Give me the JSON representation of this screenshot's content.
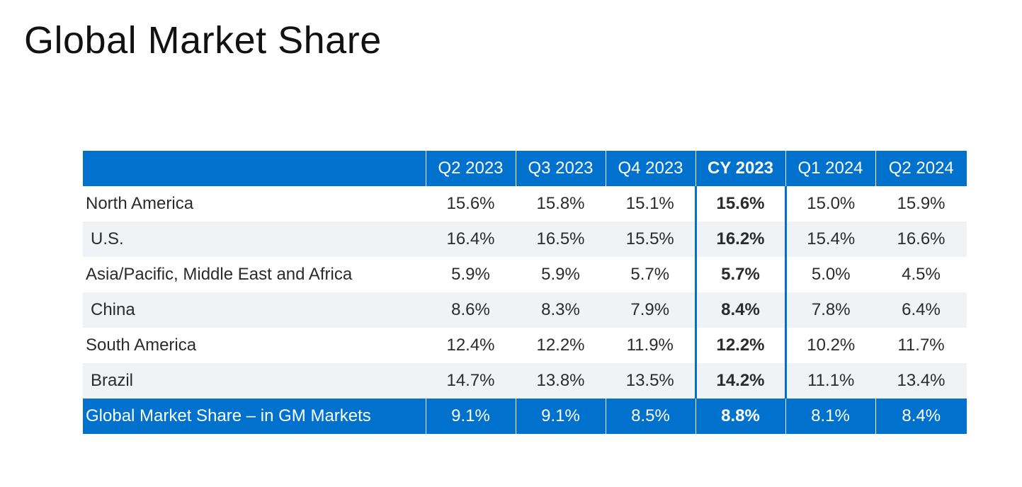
{
  "title": "Global Market Share",
  "colors": {
    "header_bg": "#0072ce",
    "header_text": "#ffffff",
    "stripe_bg": "#f0f2f5",
    "highlight_border": "#0072ce"
  },
  "table": {
    "columns": [
      "Q2 2023",
      "Q3 2023",
      "Q4 2023",
      "CY 2023",
      "Q1 2024",
      "Q2 2024"
    ],
    "highlight_column": "CY 2023",
    "rows": [
      {
        "label": "North America",
        "indent": false,
        "values": [
          "15.6%",
          "15.8%",
          "15.1%",
          "15.6%",
          "15.0%",
          "15.9%"
        ]
      },
      {
        "label": "U.S.",
        "indent": true,
        "values": [
          "16.4%",
          "16.5%",
          "15.5%",
          "16.2%",
          "15.4%",
          "16.6%"
        ]
      },
      {
        "label": "Asia/Pacific, Middle East and Africa",
        "indent": false,
        "values": [
          "5.9%",
          "5.9%",
          "5.7%",
          "5.7%",
          "5.0%",
          "4.5%"
        ]
      },
      {
        "label": "China",
        "indent": true,
        "values": [
          "8.6%",
          "8.3%",
          "7.9%",
          "8.4%",
          "7.8%",
          "6.4%"
        ]
      },
      {
        "label": "South America",
        "indent": false,
        "values": [
          "12.4%",
          "12.2%",
          "11.9%",
          "12.2%",
          "10.2%",
          "11.7%"
        ]
      },
      {
        "label": "Brazil",
        "indent": true,
        "values": [
          "14.7%",
          "13.8%",
          "13.5%",
          "14.2%",
          "11.1%",
          "13.4%"
        ]
      }
    ],
    "total": {
      "label": "Global Market Share – in GM Markets",
      "values": [
        "9.1%",
        "9.1%",
        "8.5%",
        "8.8%",
        "8.1%",
        "8.4%"
      ]
    }
  }
}
